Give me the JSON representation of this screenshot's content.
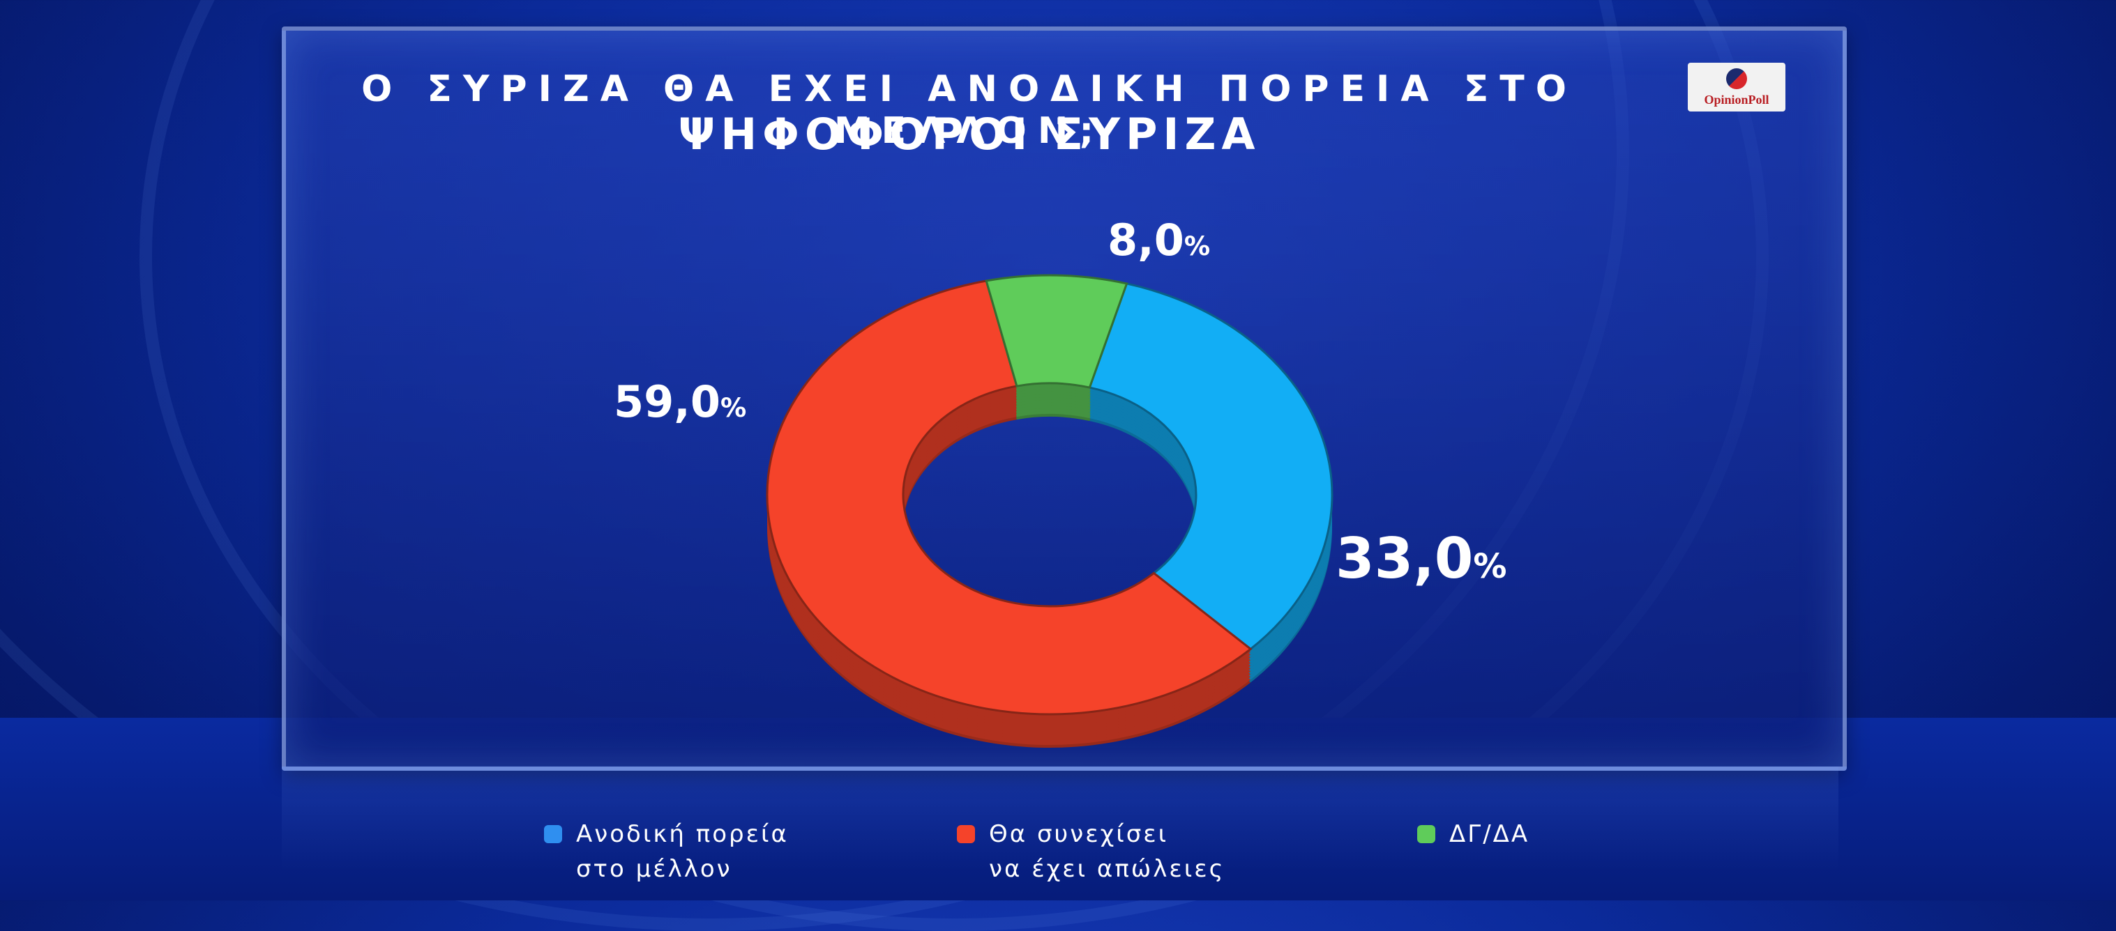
{
  "header": {
    "title_line1": "Ο ΣΥΡΙΖΑ ΘΑ ΕΧΕΙ ΑΝΟΔΙΚΗ ΠΟΡΕΙΑ ΣΤΟ ΜΕΛΛΟΝ;",
    "title_line2": "ΨΗΦΟΦΟΡΟΙ ΣΥΡΙΖΑ",
    "logo_text": "OpinionPoll"
  },
  "chart_data": {
    "type": "pie",
    "variant": "donut",
    "title": "Ο ΣΥΡΙΖΑ ΘΑ ΕΧΕΙ ΑΝΟΔΙΚΗ ΠΟΡΕΙΑ ΣΤΟ ΜΕΛΛΟΝ; ΨΗΦΟΦΟΡΟΙ ΣΥΡΙΖΑ",
    "legend_position": "bottom",
    "slices": [
      {
        "name": "Ανοδική πορεία στο μέλλον",
        "value": 33.0,
        "label": "33,0",
        "color": "#12aef5"
      },
      {
        "name": "Θα συνεχίσει να έχει απώλειες",
        "value": 59.0,
        "label": "59,0",
        "color": "#f5432a"
      },
      {
        "name": "ΔΓ/ΔΑ",
        "value": 8.0,
        "label": "8,0",
        "color": "#5fcc5a"
      }
    ],
    "percent_sign": "%"
  },
  "legend": [
    {
      "line1": "Ανοδική πορεία",
      "line2": "στο μέλλον",
      "color": "#2f8ff0"
    },
    {
      "line1": "Θα συνεχίσει",
      "line2": "να έχει απώλειες",
      "color": "#f5432a"
    },
    {
      "line1": "ΔΓ/ΔΑ",
      "line2": "",
      "color": "#5fcc5a"
    }
  ]
}
